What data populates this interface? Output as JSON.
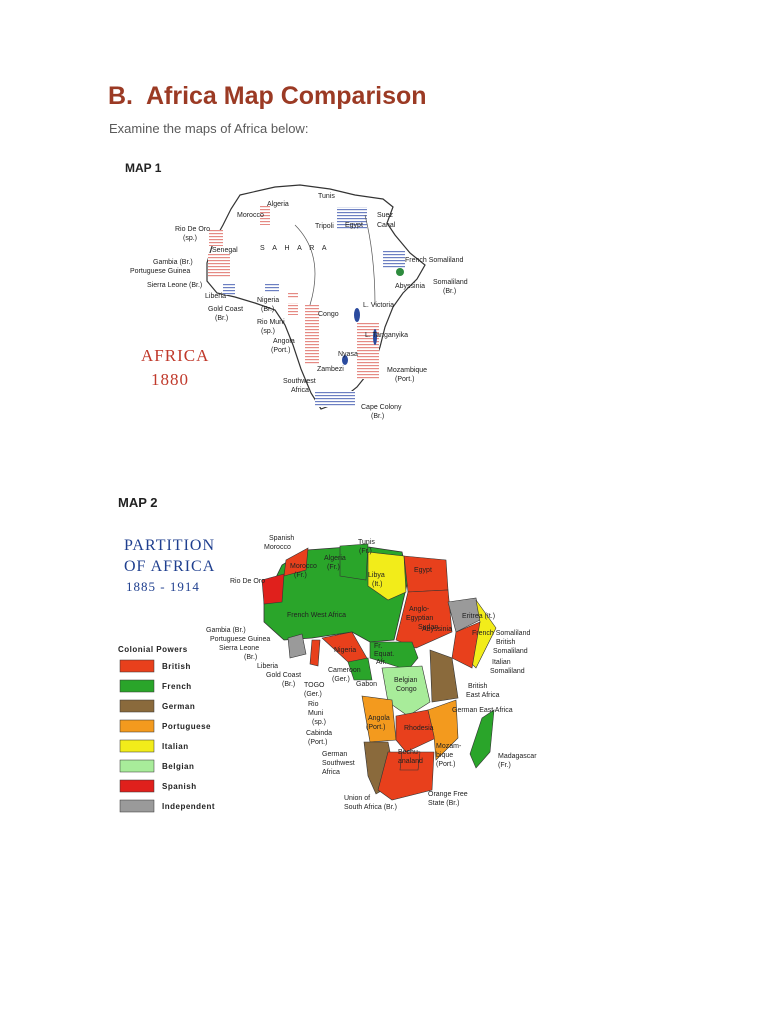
{
  "heading": {
    "letter": "B.",
    "title": "Africa Map Comparison"
  },
  "intro": "Examine the maps of Africa below:",
  "map1": {
    "label": "MAP 1",
    "caption_line1": "AFRICA",
    "caption_line2": "1880",
    "caption_color": "#c0392b",
    "sahara": "S A H A R A",
    "places": [
      "Tunis",
      "Algeria",
      "Morocco",
      "Tripoli",
      "Suez",
      "Canal",
      "Egypt",
      "Rio De Oro",
      "(sp.)",
      "Senegal",
      "Gambia (Br.)",
      "Portuguese Guinea",
      "Sierra Leone (Br.)",
      "Liberia",
      "Gold Coast",
      "(Br.)",
      "Nigeria",
      "(Br.)",
      "Rio Muni",
      "(sp.)",
      "Congo",
      "Angola",
      "(Port.)",
      "Southwest",
      "Africa",
      "Zambezi",
      "Nyasa",
      "L. Victoria",
      "L. Tanganyika",
      "Abyssinia",
      "French Somaliland",
      "Somaliland",
      "(Br.)",
      "Mozambique",
      "(Port.)",
      "Cape Colony",
      "(Br.)"
    ]
  },
  "map2": {
    "label": "MAP 2",
    "title_line1": "PARTITION",
    "title_line2": "OF AFRICA",
    "title_line3": "1885 - 1914",
    "title_color": "#1f3f8f",
    "legend_title": "Colonial Powers",
    "legend": [
      {
        "name": "British",
        "color": "#e8401c"
      },
      {
        "name": "French",
        "color": "#2aa52a"
      },
      {
        "name": "German",
        "color": "#8a6a3c"
      },
      {
        "name": "Portuguese",
        "color": "#f39a1e"
      },
      {
        "name": "Italian",
        "color": "#f2ec1a"
      },
      {
        "name": "Belgian",
        "color": "#a8ec9a"
      },
      {
        "name": "Spanish",
        "color": "#e0201c"
      },
      {
        "name": "Independent",
        "color": "#9a9a9a"
      }
    ],
    "places": [
      "Spanish",
      "Morocco",
      "Tunis",
      "(Fr.)",
      "Algeria",
      "(Fr.)",
      "Morocco",
      "(Fr.)",
      "Rio De Oro",
      "Libya",
      "(It.)",
      "Egypt",
      "French West Africa",
      "Anglo-",
      "Egyptian",
      "Sudan",
      "Eritrea (It.)",
      "French Somaliland",
      "British",
      "Somaliland",
      "Italian",
      "Somaliland",
      "Abyssinia",
      "Gambia (Br.)",
      "Portuguese Guinea",
      "Sierra Leone",
      "(Br.)",
      "Liberia",
      "Gold Coast",
      "(Br.)",
      "TOGO",
      "(Ger.)",
      "Nigeria",
      "Cameroon",
      "(Ger.)",
      "Fr.",
      "Equat.",
      "Afr.",
      "Gabon",
      "Belgian",
      "Congo",
      "British",
      "East Africa",
      "German East Africa",
      "Rio",
      "Muni",
      "(sp.)",
      "Cabinda",
      "(Port.)",
      "Angola",
      "(Port.)",
      "German",
      "Southwest",
      "Africa",
      "Rhodesia",
      "Bechu-",
      "analand",
      "Mozam-",
      "bique",
      "(Port.)",
      "Madagascar",
      "(Fr.)",
      "Union of",
      "South Africa (Br.)",
      "Orange Free",
      "State (Br.)"
    ]
  }
}
